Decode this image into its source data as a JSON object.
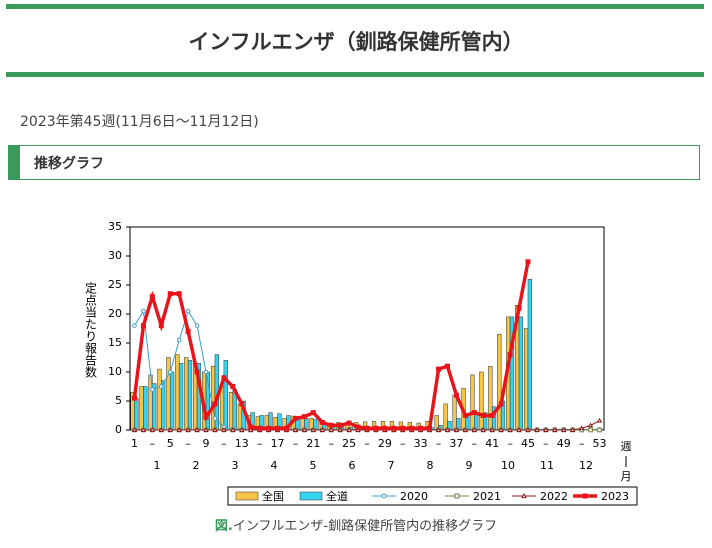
{
  "header": {
    "title": "インフルエンザ（釧路保健所管内）"
  },
  "date_text": "2023年第45週(11月6日～11月12日)",
  "section_heading": "推移グラフ",
  "chart_data": {
    "type": "bar",
    "y_label": "定点当たり報告数",
    "x_label": "週",
    "month_label": "月",
    "categories": [
      "1",
      null,
      "–",
      null,
      "5",
      null,
      "–",
      null,
      "9",
      null,
      "–",
      null,
      "13",
      null,
      "–",
      null,
      "17",
      null,
      "–",
      null,
      "21",
      null,
      "–",
      null,
      "25",
      null,
      "–",
      null,
      "29",
      null,
      "–",
      null,
      "33",
      null,
      "–",
      null,
      "37",
      null,
      "–",
      null,
      "41",
      null,
      "–",
      null,
      "45",
      null,
      "–",
      null,
      "49",
      null,
      "–",
      null,
      "53"
    ],
    "months": [
      "1",
      "2",
      "3",
      "4",
      "5",
      "6",
      "7",
      "8",
      "9",
      "10",
      "11",
      "12"
    ],
    "ylim": [
      0,
      35
    ],
    "yticks": [
      0,
      5,
      10,
      15,
      20,
      25,
      30,
      35
    ],
    "series": [
      {
        "name": "全国",
        "type": "bar",
        "color": "#f6c548",
        "values": [
          6.5,
          7.5,
          9.5,
          10.5,
          12.5,
          13,
          12.5,
          11.5,
          10,
          11,
          7.5,
          6.5,
          4.5,
          2.5,
          2.3,
          2.5,
          2.2,
          2,
          2.4,
          2.2,
          2,
          1.5,
          1.2,
          1.3,
          1.2,
          1.3,
          1.4,
          1.5,
          1.5,
          1.5,
          1.4,
          1.3,
          1.2,
          1.5,
          2.5,
          4.5,
          6,
          7.2,
          9.5,
          10,
          11,
          16.5,
          19.5,
          21.5,
          17.5,
          null,
          null,
          null,
          null,
          null,
          null,
          null,
          null
        ]
      },
      {
        "name": "全道",
        "type": "bar",
        "color": "#38d3f0",
        "values": [
          5.5,
          7.5,
          8,
          8.5,
          10,
          11.5,
          12,
          11.5,
          10,
          13,
          12,
          7,
          5,
          3,
          2.5,
          3,
          2.8,
          2.5,
          2.2,
          2,
          1.8,
          1.2,
          1,
          0.7,
          0.5,
          0.4,
          0.4,
          0.3,
          0.3,
          0.3,
          0.2,
          0.3,
          0.3,
          0.4,
          0.8,
          1.5,
          2,
          2.5,
          2.7,
          3,
          4,
          5,
          19.5,
          19.5,
          26,
          null,
          null,
          null,
          null,
          null,
          null,
          null,
          null
        ]
      },
      {
        "name": "2020",
        "type": "line",
        "marker": "circle",
        "color": "#3a9fc8",
        "values": [
          18,
          20.5,
          7,
          7.5,
          10,
          15.5,
          20.5,
          18,
          10,
          2,
          0.5,
          0.2,
          0.1,
          0.1,
          0.1,
          0.1,
          0.1,
          0.1,
          0.1,
          0.1,
          0.1,
          0.1,
          0.1,
          0.1,
          0.1,
          0.1,
          0.1,
          0.1,
          0.1,
          0.1,
          0.1,
          0.1,
          0.1,
          0.1,
          0.1,
          0.1,
          0.1,
          0.1,
          0.1,
          0.1,
          0.1,
          0.1,
          0.1,
          0.1,
          0.1,
          0.1,
          0.1,
          0.1,
          0.1,
          0.1,
          0.1,
          0.1,
          0.1
        ]
      },
      {
        "name": "2021",
        "type": "line",
        "marker": "square",
        "color": "#7d7d3c",
        "values": [
          0,
          0,
          0,
          0,
          0,
          0,
          0,
          0,
          0,
          0,
          0,
          0,
          0,
          0,
          0,
          0,
          0,
          0,
          0,
          0,
          0,
          0,
          0,
          0,
          0,
          0,
          0,
          0,
          0,
          0,
          0,
          0,
          0,
          0,
          0,
          0,
          0,
          0,
          0,
          0,
          0,
          0,
          0,
          0,
          0,
          0,
          0,
          0,
          0,
          0,
          0,
          0,
          0
        ]
      },
      {
        "name": "2022",
        "type": "line",
        "marker": "triangle",
        "color": "#8b1a1a",
        "values": [
          0,
          0,
          0,
          0,
          0,
          0,
          0,
          0,
          0,
          0,
          0,
          0,
          0,
          0,
          0,
          0,
          0,
          0,
          0,
          0,
          0,
          0,
          0,
          0,
          0,
          0,
          0,
          0,
          0,
          0,
          0,
          0,
          0,
          0,
          0,
          0,
          0,
          0,
          0,
          0,
          0,
          0,
          0,
          0,
          0,
          0,
          0,
          0,
          0,
          0,
          0.3,
          0.8,
          1.6
        ]
      },
      {
        "name": "2023",
        "type": "line",
        "marker": "filled-square",
        "color": "#e8141c",
        "values": [
          5.5,
          18,
          23,
          18,
          23.5,
          23.5,
          17,
          10,
          2.2,
          4.5,
          9,
          7.5,
          4.5,
          0.5,
          0.3,
          0.3,
          0.3,
          0.3,
          2,
          2.3,
          3,
          1.3,
          0.8,
          0.8,
          1.2,
          0.5,
          0.3,
          0.3,
          0.3,
          0.3,
          0.3,
          0.3,
          0.3,
          0.3,
          10.5,
          11,
          6,
          2.5,
          3,
          2.5,
          2.5,
          4.5,
          13,
          21,
          29,
          null,
          null,
          null,
          null,
          null,
          null,
          null,
          null
        ]
      }
    ]
  },
  "caption": {
    "prefix": "図.",
    "text": "インフルエンザ-釧路保健所管内の推移グラフ"
  }
}
